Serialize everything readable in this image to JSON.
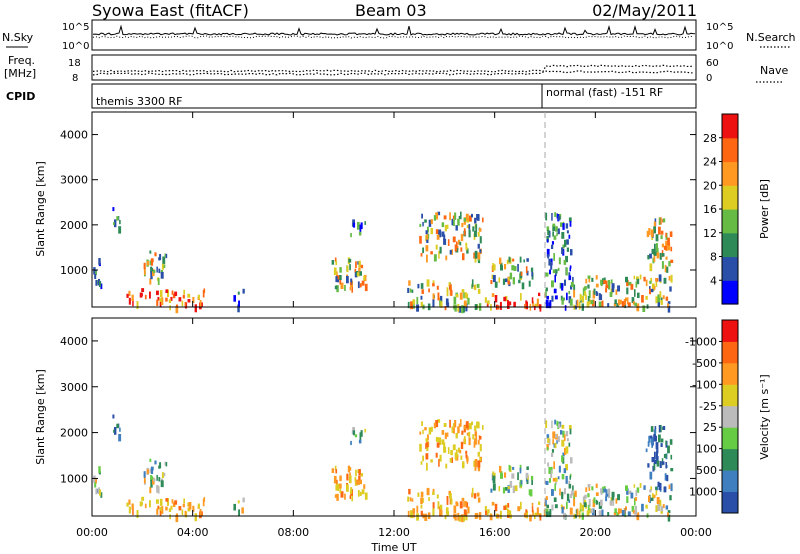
{
  "header": {
    "station": "Syowa East (fitACF)",
    "beam": "Beam 03",
    "date": "02/May/2011"
  },
  "top_panels": {
    "nsky_label": "N.Sky",
    "nsearch_label": "N.Search",
    "left_top_tick": "10^5",
    "left_bottom_tick": "10^0",
    "right_top_tick": "10^5",
    "right_bottom_tick": "10^0",
    "freq_label": "Freq.",
    "freq_unit": "[MHz]",
    "freq_tick_top": "18",
    "freq_tick_bottom": "8",
    "nave_label": "Nave",
    "nave_tick_top": "60",
    "nave_tick_bottom": "0",
    "cpid_label": "CPID",
    "cpid_first": "themis 3300 RF",
    "cpid_second": "normal (fast) -151 RF"
  },
  "panels": {
    "ylabel": "Slant Range [km]",
    "xlabel": "Time UT",
    "x_ticks": [
      "00:00",
      "04:00",
      "08:00",
      "12:00",
      "16:00",
      "20:00",
      "00:00"
    ],
    "y_ticks": [
      "1000",
      "2000",
      "3000",
      "4000"
    ],
    "power": {
      "colorbar_label": "Power [dB]",
      "levels": [
        "4",
        "8",
        "12",
        "16",
        "20",
        "24",
        "28"
      ],
      "colors": [
        "#0000ff",
        "#2a4fa8",
        "#2e8b57",
        "#66bb44",
        "#ddcc22",
        "#ff9922",
        "#ff6611",
        "#ee1111"
      ]
    },
    "velocity": {
      "colorbar_label": "Velocity [m s⁻¹]",
      "levels": [
        "1000",
        "500",
        "100",
        "25",
        "-25",
        "-100",
        "-500",
        "-1000"
      ],
      "colors": [
        "#2a4fa8",
        "#3f7fc0",
        "#2e8b57",
        "#66cc44",
        "#bbbbbb",
        "#ddcc22",
        "#ff9922",
        "#ff6611",
        "#ee1111"
      ]
    }
  },
  "chart_data": {
    "type": "heatmap",
    "title": "Syowa East (fitACF)",
    "xlabel": "Time UT",
    "ylabel": "Slant Range [km]",
    "x_ticks": [
      "00:00",
      "04:00",
      "08:00",
      "12:00",
      "16:00",
      "20:00",
      "00:00"
    ],
    "xlim_hours": [
      0,
      24
    ],
    "ylim_km": [
      180,
      4500
    ],
    "mode_change_hour": 18.0,
    "echo_regions": [
      {
        "t0": 0.0,
        "t1": 0.4,
        "r0": 700,
        "r1": 1300,
        "power": "low",
        "velocity": "mixed"
      },
      {
        "t0": 0.8,
        "t1": 1.1,
        "r0": 1900,
        "r1": 2400,
        "power": "low",
        "velocity": "positive"
      },
      {
        "t0": 1.3,
        "t1": 4.5,
        "r0": 200,
        "r1": 600,
        "power": "high",
        "velocity": "negative"
      },
      {
        "t0": 2.0,
        "t1": 3.0,
        "r0": 800,
        "r1": 1500,
        "power": "medium",
        "velocity": "mixed"
      },
      {
        "t0": 5.5,
        "t1": 6.0,
        "r0": 200,
        "r1": 600,
        "power": "low",
        "velocity": "mixed"
      },
      {
        "t0": 9.5,
        "t1": 11.0,
        "r0": 600,
        "r1": 1300,
        "power": "medium",
        "velocity": "negative"
      },
      {
        "t0": 10.2,
        "t1": 10.9,
        "r0": 1800,
        "r1": 2200,
        "power": "low",
        "velocity": "mixed"
      },
      {
        "t0": 12.5,
        "t1": 15.5,
        "r0": 200,
        "r1": 800,
        "power": "medium",
        "velocity": "negative"
      },
      {
        "t0": 13.0,
        "t1": 15.5,
        "r0": 1300,
        "r1": 2300,
        "power": "medium",
        "velocity": "negative"
      },
      {
        "t0": 15.5,
        "t1": 18.0,
        "r0": 200,
        "r1": 500,
        "power": "high",
        "velocity": "negative"
      },
      {
        "t0": 15.8,
        "t1": 17.5,
        "r0": 700,
        "r1": 1300,
        "power": "medium",
        "velocity": "mixed"
      },
      {
        "t0": 18.0,
        "t1": 19.0,
        "r0": 200,
        "r1": 2300,
        "power": "low",
        "velocity": "mixed"
      },
      {
        "t0": 19.0,
        "t1": 23.0,
        "r0": 200,
        "r1": 900,
        "power": "medium",
        "velocity": "mixed"
      },
      {
        "t0": 22.0,
        "t1": 23.0,
        "r0": 800,
        "r1": 2200,
        "power": "medium",
        "velocity": "positive"
      }
    ]
  }
}
